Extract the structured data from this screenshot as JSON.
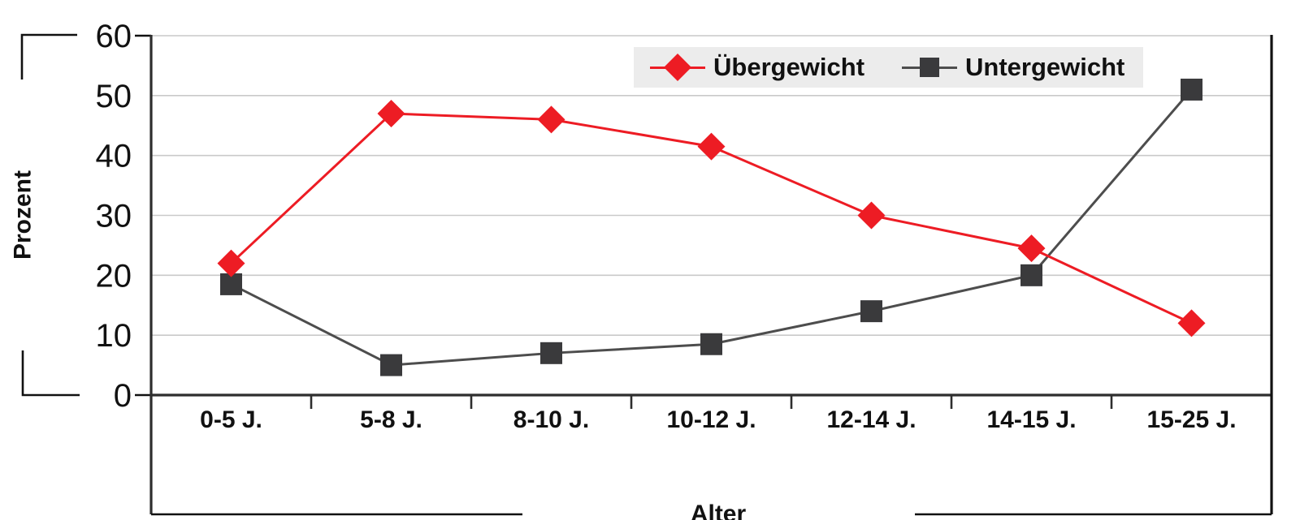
{
  "chart_data": {
    "type": "line",
    "title": "",
    "xlabel": "Alter",
    "ylabel": "Prozent",
    "categories": [
      "0-5 J.",
      "5-8 J.",
      "8-10 J.",
      "10-12 J.",
      "12-14 J.",
      "14-15 J.",
      "15-25 J."
    ],
    "series": [
      {
        "name": "Übergewicht",
        "marker": "diamond",
        "color": "#ED1C24",
        "line_color": "#ED1C24",
        "values": [
          22,
          47,
          46,
          41.5,
          30,
          24.5,
          12
        ]
      },
      {
        "name": "Untergewicht",
        "marker": "square",
        "color": "#3A3A3C",
        "line_color": "#4D4D4D",
        "values": [
          18.5,
          5,
          7,
          8.5,
          14,
          20,
          51
        ]
      }
    ],
    "y_ticks": [
      0,
      10,
      20,
      30,
      40,
      50,
      60
    ],
    "ylim": [
      0,
      60
    ],
    "grid": true,
    "legend_position": "top",
    "colors": {
      "gridline": "#C9C9C9",
      "axis": "#2E2E2E",
      "frame": "#111111",
      "tick_label": "#111111",
      "legend_bg": "#ECECEC"
    }
  }
}
